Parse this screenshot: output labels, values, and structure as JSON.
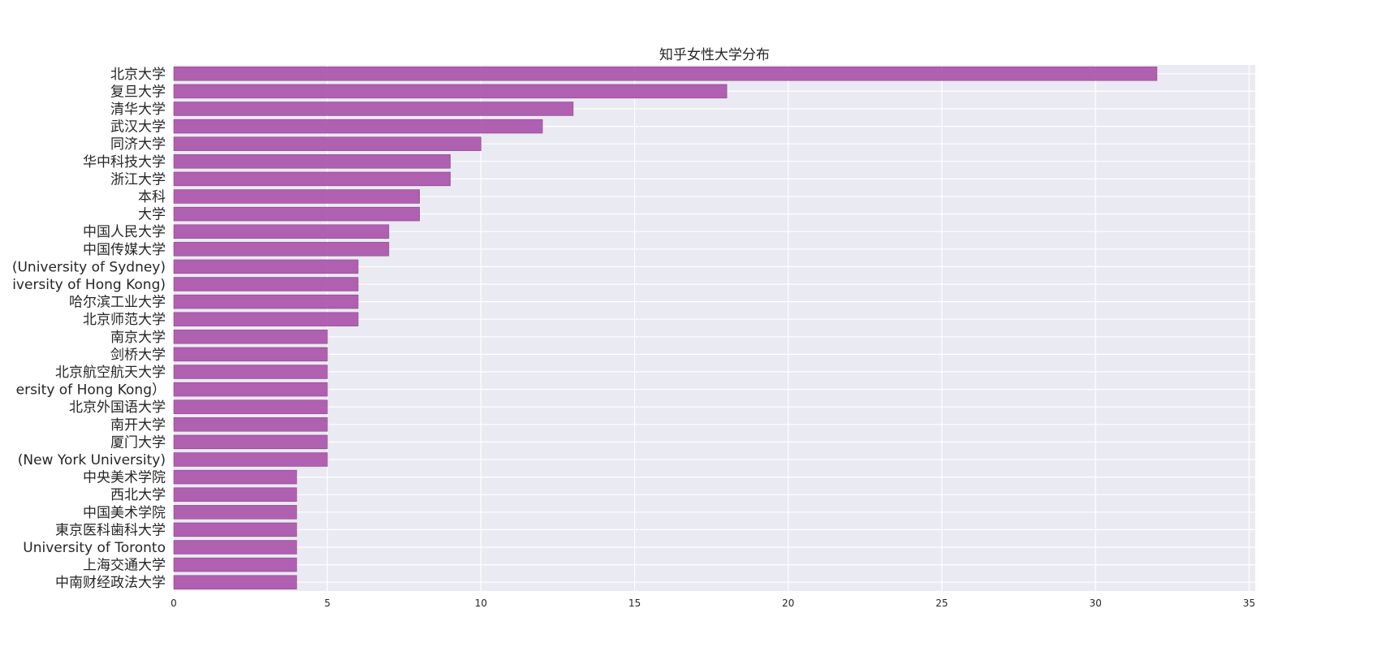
{
  "chart_data": {
    "type": "bar",
    "orientation": "horizontal",
    "title": "知乎女性大学分布",
    "xlabel": "",
    "ylabel": "",
    "categories": [
      "北京大学",
      "复旦大学",
      "清华大学",
      "武汉大学",
      "同济大学",
      "华中科技大学",
      "浙江大学",
      "本科",
      "大学",
      "中国人民大学",
      "中国传媒大学",
      "(University of Sydney)",
      "iversity of Hong Kong)",
      "哈尔滨工业大学",
      "北京师范大学",
      "南京大学",
      "剑桥大学",
      "北京航空航天大学",
      "ersity of Hong Kong）",
      "北京外国语大学",
      "南开大学",
      "厦门大学",
      "(New York University)",
      "中央美术学院",
      "西北大学",
      "中国美术学院",
      "東京医科歯科大学",
      "University of Toronto",
      "上海交通大学",
      "中南财经政法大学"
    ],
    "values": [
      32,
      18,
      13,
      12,
      10,
      9,
      9,
      8,
      8,
      7,
      7,
      6,
      6,
      6,
      6,
      5,
      5,
      5,
      5,
      5,
      5,
      5,
      5,
      4,
      4,
      4,
      4,
      4,
      4,
      4
    ],
    "xlim": [
      0,
      35.2
    ],
    "xticks": [
      "0",
      "5",
      "10",
      "15",
      "20",
      "25",
      "30",
      "35"
    ],
    "grid": true,
    "colors": {
      "bar": "#a64ca6",
      "background": "#eaeaf2",
      "grid": "#ffffff"
    }
  }
}
